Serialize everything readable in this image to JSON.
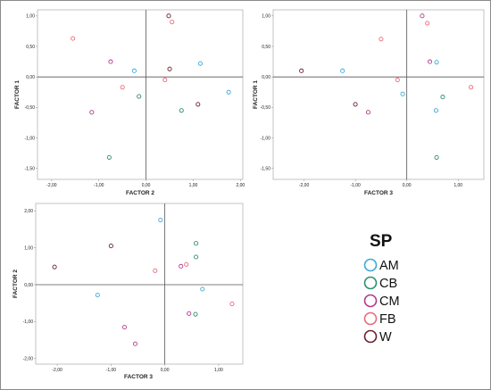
{
  "colors": {
    "AM": "#3aa9d8",
    "CB": "#2a8f6e",
    "CM": "#b03a8a",
    "FB": "#ea6a7a",
    "W": "#6b1f2e"
  },
  "legend": {
    "title": "SP",
    "entries": [
      {
        "code": "AM",
        "label": "AM"
      },
      {
        "code": "CB",
        "label": "CB"
      },
      {
        "code": "CM",
        "label": "CM"
      },
      {
        "code": "FB",
        "label": "FB"
      },
      {
        "code": "W",
        "label": "W"
      }
    ]
  },
  "chart_data": [
    {
      "type": "scatter",
      "title": "",
      "xlabel": "FACTOR 2",
      "ylabel": "FACTOR 1",
      "xlim": [
        -2.3,
        2.05
      ],
      "ylim": [
        -1.68,
        1.1
      ],
      "xticks": [
        "-2,00",
        "-1,00",
        "0,00",
        "1,00",
        "2,00"
      ],
      "yticks": [
        "1,00",
        "0,50",
        "0,00",
        "-0,50",
        "-1,00",
        "-1,50"
      ],
      "points": [
        {
          "sp": "FB",
          "x": -1.55,
          "y": 0.63
        },
        {
          "sp": "CM",
          "x": -0.75,
          "y": 0.25
        },
        {
          "sp": "AM",
          "x": -0.25,
          "y": 0.1
        },
        {
          "sp": "FB",
          "x": -0.5,
          "y": -0.17
        },
        {
          "sp": "CM",
          "x": -1.15,
          "y": -0.58
        },
        {
          "sp": "CB",
          "x": -0.15,
          "y": -0.32
        },
        {
          "sp": "CB",
          "x": -0.78,
          "y": -1.32
        },
        {
          "sp": "W",
          "x": 0.48,
          "y": 1.0
        },
        {
          "sp": "FB",
          "x": 0.55,
          "y": 0.9
        },
        {
          "sp": "W",
          "x": 0.5,
          "y": 0.13
        },
        {
          "sp": "FB",
          "x": 0.4,
          "y": -0.05
        },
        {
          "sp": "AM",
          "x": 1.15,
          "y": 0.22
        },
        {
          "sp": "CB",
          "x": 0.75,
          "y": -0.55
        },
        {
          "sp": "W",
          "x": 1.1,
          "y": -0.45
        },
        {
          "sp": "AM",
          "x": 1.75,
          "y": -0.25
        }
      ]
    },
    {
      "type": "scatter",
      "title": "",
      "xlabel": "FACTOR 3",
      "ylabel": "FACTOR 1",
      "xlim": [
        -2.6,
        1.5
      ],
      "ylim": [
        -1.68,
        1.1
      ],
      "xticks": [
        "-2,00",
        "-1,00",
        "0,00",
        "1,00"
      ],
      "yticks": [
        "1,00",
        "0,50",
        "0,00",
        "-0,50",
        "-1,00",
        "-1,50"
      ],
      "points": [
        {
          "sp": "W",
          "x": -2.05,
          "y": 0.1
        },
        {
          "sp": "AM",
          "x": -1.25,
          "y": 0.1
        },
        {
          "sp": "FB",
          "x": -0.5,
          "y": 0.62
        },
        {
          "sp": "W",
          "x": -1.0,
          "y": -0.45
        },
        {
          "sp": "CM",
          "x": -0.75,
          "y": -0.58
        },
        {
          "sp": "FB",
          "x": -0.18,
          "y": -0.05
        },
        {
          "sp": "AM",
          "x": -0.08,
          "y": -0.28
        },
        {
          "sp": "CM",
          "x": 0.3,
          "y": 1.0
        },
        {
          "sp": "FB",
          "x": 0.4,
          "y": 0.88
        },
        {
          "sp": "CM",
          "x": 0.45,
          "y": 0.25
        },
        {
          "sp": "AM",
          "x": 0.58,
          "y": 0.24
        },
        {
          "sp": "CB",
          "x": 0.7,
          "y": -0.33
        },
        {
          "sp": "AM",
          "x": 0.57,
          "y": -0.55
        },
        {
          "sp": "FB",
          "x": 1.25,
          "y": -0.17
        },
        {
          "sp": "CB",
          "x": 0.58,
          "y": -1.32
        }
      ]
    },
    {
      "type": "scatter",
      "title": "",
      "xlabel": "FACTOR 3",
      "ylabel": "FACTOR 2",
      "xlim": [
        -2.4,
        1.45
      ],
      "ylim": [
        -2.15,
        2.2
      ],
      "xticks": [
        "-2,00",
        "-1,00",
        "0,00",
        "1,00"
      ],
      "yticks": [
        "2,00",
        "1,00",
        "0,00",
        "-1,00",
        "-2,00"
      ],
      "points": [
        {
          "sp": "W",
          "x": -2.05,
          "y": 0.48
        },
        {
          "sp": "W",
          "x": -1.0,
          "y": 1.05
        },
        {
          "sp": "AM",
          "x": -1.25,
          "y": -0.28
        },
        {
          "sp": "AM",
          "x": -0.08,
          "y": 1.75
        },
        {
          "sp": "FB",
          "x": -0.18,
          "y": 0.38
        },
        {
          "sp": "CM",
          "x": -0.75,
          "y": -1.15
        },
        {
          "sp": "CM",
          "x": -0.55,
          "y": -1.6
        },
        {
          "sp": "CB",
          "x": 0.58,
          "y": 1.12
        },
        {
          "sp": "CB",
          "x": 0.58,
          "y": 0.75
        },
        {
          "sp": "FB",
          "x": 0.4,
          "y": 0.55
        },
        {
          "sp": "CM",
          "x": 0.3,
          "y": 0.5
        },
        {
          "sp": "AM",
          "x": 0.7,
          "y": -0.12
        },
        {
          "sp": "CM",
          "x": 0.45,
          "y": -0.78
        },
        {
          "sp": "CB",
          "x": 0.57,
          "y": -0.8
        },
        {
          "sp": "FB",
          "x": 1.25,
          "y": -0.52
        }
      ]
    }
  ]
}
